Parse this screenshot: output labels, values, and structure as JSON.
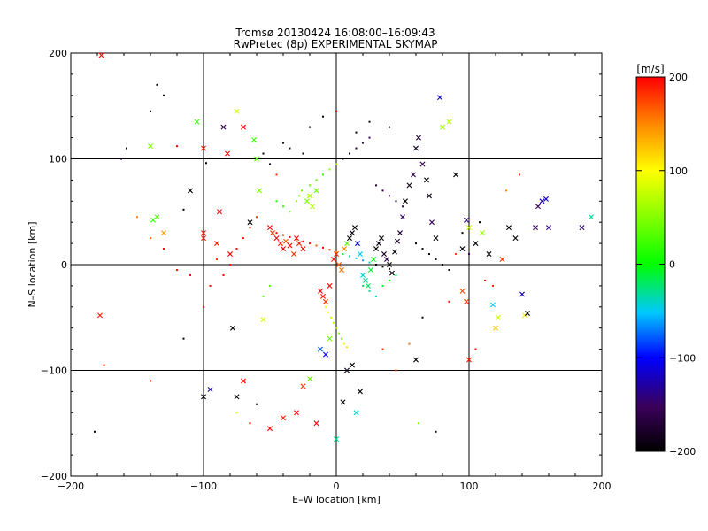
{
  "chart_data": {
    "type": "scatter",
    "title": "Tromsø 20130424 16:08:00–16:09:43",
    "subtitle": "RwPretec (8p) EXPERIMENTAL SKYMAP",
    "xlabel": "E–W location [km]",
    "ylabel": "N–S location [km]",
    "xlim": [
      -200,
      200
    ],
    "ylim": [
      -200,
      200
    ],
    "xticks": [
      "−200",
      "−100",
      "0",
      "100",
      "200"
    ],
    "yticks": [
      "200",
      "100",
      "0",
      "−100",
      "−200"
    ],
    "grid": true,
    "colorbar": {
      "label": "[m/s]",
      "range": [
        -200,
        200
      ],
      "ticks": [
        "200",
        "100",
        "0",
        "−100",
        "−200"
      ],
      "colormap": "rainbow: black-purple-blue-cyan-green-yellow-orange-red"
    },
    "marker_types": [
      "x",
      "dot"
    ],
    "points_note": "Thousands of points; representative sample digitized.",
    "points": [
      [
        -177,
        198,
        200,
        "x"
      ],
      [
        -178,
        -48,
        190,
        "x"
      ],
      [
        -175,
        -95,
        185,
        "dot"
      ],
      [
        -182,
        -158,
        -200,
        "dot"
      ],
      [
        -140,
        112,
        50,
        "x"
      ],
      [
        -138,
        42,
        20,
        "x"
      ],
      [
        -135,
        45,
        30,
        "x"
      ],
      [
        -130,
        30,
        140,
        "x"
      ],
      [
        -120,
        112,
        200,
        "dot"
      ],
      [
        -115,
        52,
        -200,
        "dot"
      ],
      [
        -110,
        70,
        -200,
        "x"
      ],
      [
        -105,
        135,
        20,
        "x"
      ],
      [
        -100,
        110,
        190,
        "x"
      ],
      [
        -100,
        25,
        190,
        "x"
      ],
      [
        -100,
        30,
        190,
        "x"
      ],
      [
        -95,
        -20,
        200,
        "dot"
      ],
      [
        -90,
        20,
        190,
        "x"
      ],
      [
        -88,
        50,
        200,
        "x"
      ],
      [
        -85,
        130,
        -150,
        "x"
      ],
      [
        -82,
        105,
        200,
        "x"
      ],
      [
        -80,
        10,
        200,
        "x"
      ],
      [
        -78,
        -60,
        -200,
        "x"
      ],
      [
        -75,
        145,
        80,
        "x"
      ],
      [
        -70,
        130,
        200,
        "x"
      ],
      [
        -65,
        40,
        -200,
        "x"
      ],
      [
        -62,
        118,
        20,
        "x"
      ],
      [
        -60,
        100,
        30,
        "x"
      ],
      [
        -58,
        70,
        50,
        "x"
      ],
      [
        -55,
        -52,
        80,
        "x"
      ],
      [
        -50,
        35,
        200,
        "x"
      ],
      [
        -48,
        30,
        180,
        "x"
      ],
      [
        -45,
        25,
        200,
        "x"
      ],
      [
        -42,
        20,
        190,
        "x"
      ],
      [
        -40,
        15,
        200,
        "x"
      ],
      [
        -38,
        22,
        170,
        "x"
      ],
      [
        -35,
        18,
        200,
        "x"
      ],
      [
        -32,
        10,
        180,
        "x"
      ],
      [
        -30,
        25,
        200,
        "x"
      ],
      [
        -28,
        20,
        190,
        "x"
      ],
      [
        -25,
        15,
        200,
        "x"
      ],
      [
        -22,
        60,
        50,
        "x"
      ],
      [
        -20,
        65,
        60,
        "x"
      ],
      [
        -18,
        55,
        70,
        "x"
      ],
      [
        -15,
        70,
        40,
        "x"
      ],
      [
        -12,
        -25,
        200,
        "x"
      ],
      [
        -10,
        -30,
        190,
        "x"
      ],
      [
        -8,
        -35,
        180,
        "x"
      ],
      [
        -5,
        -20,
        200,
        "x"
      ],
      [
        -2,
        5,
        190,
        "x"
      ],
      [
        0,
        10,
        180,
        "x"
      ],
      [
        2,
        0,
        170,
        "x"
      ],
      [
        4,
        -5,
        160,
        "x"
      ],
      [
        6,
        15,
        150,
        "x"
      ],
      [
        8,
        20,
        40,
        "x"
      ],
      [
        10,
        25,
        -200,
        "x"
      ],
      [
        12,
        30,
        -190,
        "x"
      ],
      [
        14,
        35,
        -200,
        "x"
      ],
      [
        16,
        20,
        -100,
        "x"
      ],
      [
        18,
        10,
        -50,
        "x"
      ],
      [
        20,
        -10,
        -40,
        "x"
      ],
      [
        22,
        -15,
        -30,
        "x"
      ],
      [
        24,
        -20,
        -20,
        "x"
      ],
      [
        26,
        -5,
        -10,
        "x"
      ],
      [
        28,
        5,
        0,
        "x"
      ],
      [
        30,
        15,
        -200,
        "x"
      ],
      [
        32,
        20,
        -190,
        "x"
      ],
      [
        34,
        25,
        -200,
        "x"
      ],
      [
        36,
        10,
        -180,
        "x"
      ],
      [
        38,
        5,
        -160,
        "x"
      ],
      [
        40,
        0,
        -200,
        "x"
      ],
      [
        42,
        -8,
        -190,
        "x"
      ],
      [
        44,
        12,
        -200,
        "x"
      ],
      [
        46,
        22,
        -180,
        "x"
      ],
      [
        48,
        30,
        -170,
        "x"
      ],
      [
        50,
        45,
        -150,
        "x"
      ],
      [
        52,
        60,
        -200,
        "x"
      ],
      [
        55,
        75,
        -190,
        "x"
      ],
      [
        58,
        85,
        -160,
        "x"
      ],
      [
        60,
        110,
        -180,
        "x"
      ],
      [
        62,
        120,
        -170,
        "x"
      ],
      [
        65,
        95,
        -160,
        "x"
      ],
      [
        68,
        80,
        -200,
        "x"
      ],
      [
        70,
        65,
        -190,
        "x"
      ],
      [
        72,
        40,
        -150,
        "x"
      ],
      [
        75,
        25,
        -200,
        "x"
      ],
      [
        78,
        158,
        -120,
        "x"
      ],
      [
        80,
        130,
        60,
        "x"
      ],
      [
        85,
        135,
        70,
        "x"
      ],
      [
        90,
        85,
        -200,
        "x"
      ],
      [
        95,
        15,
        -200,
        "x"
      ],
      [
        98,
        42,
        -140,
        "x"
      ],
      [
        100,
        35,
        80,
        "x"
      ],
      [
        95,
        -25,
        170,
        "x"
      ],
      [
        98,
        -35,
        180,
        "x"
      ],
      [
        100,
        -90,
        190,
        "x"
      ],
      [
        105,
        20,
        -200,
        "x"
      ],
      [
        110,
        30,
        60,
        "x"
      ],
      [
        115,
        10,
        -200,
        "x"
      ],
      [
        118,
        -38,
        -50,
        "x"
      ],
      [
        120,
        -60,
        120,
        "x"
      ],
      [
        122,
        -50,
        80,
        "x"
      ],
      [
        125,
        5,
        180,
        "x"
      ],
      [
        130,
        35,
        -200,
        "x"
      ],
      [
        135,
        25,
        -200,
        "x"
      ],
      [
        140,
        -28,
        -120,
        "x"
      ],
      [
        142,
        -48,
        110,
        "x"
      ],
      [
        144,
        -46,
        -200,
        "x"
      ],
      [
        150,
        35,
        -150,
        "x"
      ],
      [
        152,
        55,
        -150,
        "x"
      ],
      [
        155,
        60,
        -130,
        "x"
      ],
      [
        158,
        62,
        -120,
        "x"
      ],
      [
        160,
        35,
        -140,
        "x"
      ],
      [
        185,
        35,
        -140,
        "x"
      ],
      [
        192,
        45,
        -30,
        "x"
      ],
      [
        -50,
        -155,
        200,
        "x"
      ],
      [
        -40,
        -145,
        190,
        "x"
      ],
      [
        -30,
        -140,
        200,
        "x"
      ],
      [
        -25,
        -115,
        180,
        "x"
      ],
      [
        -20,
        -108,
        40,
        "x"
      ],
      [
        -15,
        -150,
        200,
        "x"
      ],
      [
        -12,
        -80,
        -80,
        "x"
      ],
      [
        -8,
        -85,
        -100,
        "x"
      ],
      [
        -5,
        -70,
        40,
        "x"
      ],
      [
        0,
        -165,
        -30,
        "x"
      ],
      [
        5,
        -130,
        -200,
        "x"
      ],
      [
        8,
        -100,
        -190,
        "x"
      ],
      [
        12,
        -95,
        -200,
        "x"
      ],
      [
        15,
        -140,
        -40,
        "x"
      ],
      [
        18,
        -120,
        -200,
        "x"
      ],
      [
        -100,
        -125,
        -200,
        "x"
      ],
      [
        -95,
        -118,
        -120,
        "x"
      ],
      [
        -75,
        -125,
        -200,
        "x"
      ],
      [
        -70,
        -110,
        200,
        "x"
      ],
      [
        -115,
        -70,
        -200,
        "dot"
      ],
      [
        60,
        -90,
        -200,
        "x"
      ],
      [
        75,
        -158,
        -200,
        "dot"
      ],
      [
        62,
        -150,
        50,
        "dot"
      ],
      [
        -45,
        30,
        200,
        "dot"
      ],
      [
        -40,
        28,
        190,
        "dot"
      ],
      [
        -35,
        26,
        200,
        "dot"
      ],
      [
        -30,
        24,
        180,
        "dot"
      ],
      [
        -25,
        22,
        200,
        "dot"
      ],
      [
        -20,
        20,
        190,
        "dot"
      ],
      [
        -15,
        18,
        170,
        "dot"
      ],
      [
        -10,
        16,
        200,
        "dot"
      ],
      [
        -5,
        14,
        180,
        "dot"
      ],
      [
        0,
        12,
        150,
        "dot"
      ],
      [
        5,
        10,
        -10,
        "dot"
      ],
      [
        10,
        8,
        -30,
        "dot"
      ],
      [
        15,
        6,
        -50,
        "dot"
      ],
      [
        20,
        4,
        -60,
        "dot"
      ],
      [
        25,
        2,
        -40,
        "dot"
      ],
      [
        30,
        0,
        -200,
        "dot"
      ],
      [
        35,
        -2,
        -190,
        "dot"
      ],
      [
        40,
        -4,
        -200,
        "dot"
      ],
      [
        -20,
        75,
        40,
        "dot"
      ],
      [
        -15,
        80,
        30,
        "dot"
      ],
      [
        -10,
        85,
        20,
        "dot"
      ],
      [
        -5,
        90,
        50,
        "dot"
      ],
      [
        0,
        95,
        70,
        "dot"
      ],
      [
        5,
        100,
        -190,
        "dot"
      ],
      [
        10,
        105,
        -180,
        "dot"
      ],
      [
        15,
        110,
        -170,
        "dot"
      ],
      [
        20,
        115,
        -160,
        "dot"
      ],
      [
        25,
        120,
        -150,
        "dot"
      ],
      [
        30,
        75,
        -170,
        "dot"
      ],
      [
        35,
        70,
        -160,
        "dot"
      ],
      [
        40,
        65,
        -150,
        "dot"
      ],
      [
        45,
        60,
        -170,
        "dot"
      ],
      [
        50,
        55,
        -160,
        "dot"
      ],
      [
        -8,
        -40,
        100,
        "dot"
      ],
      [
        -6,
        -45,
        90,
        "dot"
      ],
      [
        -4,
        -50,
        80,
        "dot"
      ],
      [
        -2,
        -55,
        70,
        "dot"
      ],
      [
        0,
        -60,
        60,
        "dot"
      ],
      [
        2,
        -65,
        50,
        "dot"
      ],
      [
        4,
        -70,
        40,
        "dot"
      ],
      [
        6,
        -75,
        100,
        "dot"
      ],
      [
        8,
        -78,
        110,
        "dot"
      ],
      [
        -30,
        60,
        60,
        "dot"
      ],
      [
        -28,
        65,
        50,
        "dot"
      ],
      [
        -26,
        70,
        40,
        "dot"
      ],
      [
        -35,
        50,
        30,
        "dot"
      ],
      [
        -40,
        55,
        20,
        "dot"
      ],
      [
        -45,
        60,
        10,
        "dot"
      ],
      [
        20,
        -20,
        -20,
        "dot"
      ],
      [
        25,
        -25,
        -30,
        "dot"
      ],
      [
        30,
        -30,
        -40,
        "dot"
      ],
      [
        35,
        -20,
        -10,
        "dot"
      ],
      [
        40,
        -15,
        0,
        "dot"
      ],
      [
        45,
        -10,
        -20,
        "dot"
      ],
      [
        -150,
        45,
        150,
        "dot"
      ],
      [
        -140,
        25,
        170,
        "dot"
      ],
      [
        -130,
        15,
        200,
        "dot"
      ],
      [
        -120,
        -5,
        190,
        "dot"
      ],
      [
        -110,
        -10,
        200,
        "dot"
      ],
      [
        -100,
        -40,
        200,
        "dot"
      ],
      [
        -90,
        5,
        180,
        "dot"
      ],
      [
        -85,
        -10,
        200,
        "dot"
      ],
      [
        -80,
        0,
        190,
        "dot"
      ],
      [
        -75,
        15,
        200,
        "dot"
      ],
      [
        -70,
        25,
        190,
        "dot"
      ],
      [
        -65,
        35,
        200,
        "dot"
      ],
      [
        -60,
        45,
        180,
        "dot"
      ],
      [
        -55,
        -30,
        40,
        "dot"
      ],
      [
        -50,
        -20,
        30,
        "dot"
      ],
      [
        60,
        20,
        -200,
        "dot"
      ],
      [
        65,
        15,
        -190,
        "dot"
      ],
      [
        70,
        10,
        -200,
        "dot"
      ],
      [
        75,
        5,
        -180,
        "dot"
      ],
      [
        80,
        0,
        -200,
        "dot"
      ],
      [
        85,
        -5,
        -190,
        "dot"
      ],
      [
        90,
        10,
        180,
        "dot"
      ],
      [
        95,
        30,
        -200,
        "dot"
      ],
      [
        100,
        10,
        -150,
        "dot"
      ],
      [
        108,
        40,
        -200,
        "dot"
      ],
      [
        112,
        -15,
        200,
        "dot"
      ],
      [
        118,
        -20,
        190,
        "dot"
      ],
      [
        128,
        70,
        150,
        "dot"
      ],
      [
        138,
        85,
        190,
        "dot"
      ],
      [
        -140,
        -110,
        200,
        "dot"
      ],
      [
        -75,
        -140,
        80,
        "dot"
      ],
      [
        -65,
        -150,
        200,
        "dot"
      ],
      [
        -60,
        -132,
        -200,
        "dot"
      ],
      [
        35,
        -80,
        180,
        "dot"
      ],
      [
        45,
        -100,
        170,
        "dot"
      ],
      [
        55,
        -75,
        160,
        "dot"
      ],
      [
        65,
        -50,
        -200,
        "dot"
      ],
      [
        85,
        -35,
        200,
        "dot"
      ],
      [
        105,
        -80,
        200,
        "dot"
      ],
      [
        -55,
        105,
        -200,
        "dot"
      ],
      [
        -50,
        95,
        -190,
        "dot"
      ],
      [
        -45,
        85,
        180,
        "dot"
      ],
      [
        -40,
        115,
        -200,
        "dot"
      ],
      [
        -35,
        110,
        -170,
        "dot"
      ],
      [
        -25,
        105,
        -200,
        "dot"
      ],
      [
        -135,
        170,
        -200,
        "dot"
      ],
      [
        -140,
        145,
        -200,
        "dot"
      ],
      [
        -130,
        160,
        -190,
        "dot"
      ],
      [
        -158,
        110,
        -200,
        "dot"
      ],
      [
        -162,
        100,
        -180,
        "dot"
      ],
      [
        -98,
        96,
        -200,
        "dot"
      ],
      [
        -20,
        130,
        -200,
        "dot"
      ],
      [
        -10,
        140,
        -200,
        "dot"
      ],
      [
        0,
        145,
        200,
        "dot"
      ],
      [
        15,
        125,
        -200,
        "dot"
      ],
      [
        25,
        135,
        -190,
        "dot"
      ],
      [
        40,
        130,
        -200,
        "dot"
      ]
    ]
  }
}
